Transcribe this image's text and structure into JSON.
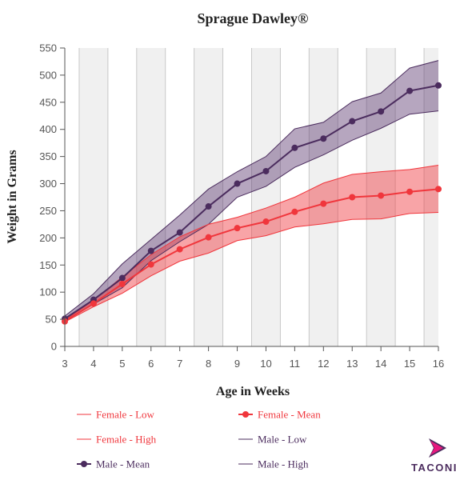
{
  "chart_data": {
    "type": "line",
    "title": "Sprague Dawley®",
    "xlabel": "Age in Weeks",
    "ylabel": "Weight in Grams",
    "x": [
      3,
      4,
      5,
      6,
      7,
      8,
      9,
      10,
      11,
      12,
      13,
      14,
      15,
      16
    ],
    "xlim": [
      3,
      16
    ],
    "ylim": [
      0,
      550
    ],
    "yticks": [
      0,
      50,
      100,
      150,
      200,
      250,
      300,
      350,
      400,
      450,
      500,
      550
    ],
    "series": [
      {
        "name": "Female - Low",
        "color": "#f0363c",
        "values": [
          45,
          73,
          98,
          130,
          157,
          172,
          195,
          204,
          220,
          226,
          234,
          235,
          245,
          247
        ]
      },
      {
        "name": "Female - Mean",
        "color": "#f0363c",
        "values": [
          46,
          79,
          115,
          151,
          179,
          201,
          218,
          230,
          248,
          263,
          275,
          278,
          285,
          290
        ]
      },
      {
        "name": "Female - High",
        "color": "#f0363c",
        "values": [
          48,
          85,
          128,
          169,
          202,
          225,
          238,
          255,
          275,
          301,
          317,
          322,
          326,
          334
        ]
      },
      {
        "name": "Male - Low",
        "color": "#4b2c5e",
        "values": [
          47,
          78,
          108,
          158,
          193,
          225,
          275,
          295,
          330,
          353,
          380,
          402,
          428,
          434
        ]
      },
      {
        "name": "Male - Mean",
        "color": "#4b2c5e",
        "values": [
          51,
          86,
          126,
          176,
          210,
          258,
          300,
          323,
          366,
          383,
          415,
          433,
          471,
          481
        ]
      },
      {
        "name": "Male - High",
        "color": "#4b2c5e",
        "values": [
          56,
          97,
          152,
          197,
          242,
          290,
          322,
          350,
          401,
          413,
          451,
          467,
          513,
          527
        ]
      }
    ],
    "grid": true,
    "alternating_bands": true,
    "legend_position": "bottom"
  },
  "logo": {
    "text": "TACONIC",
    "color": "#4b2c5e",
    "accent": "#e8197f"
  }
}
